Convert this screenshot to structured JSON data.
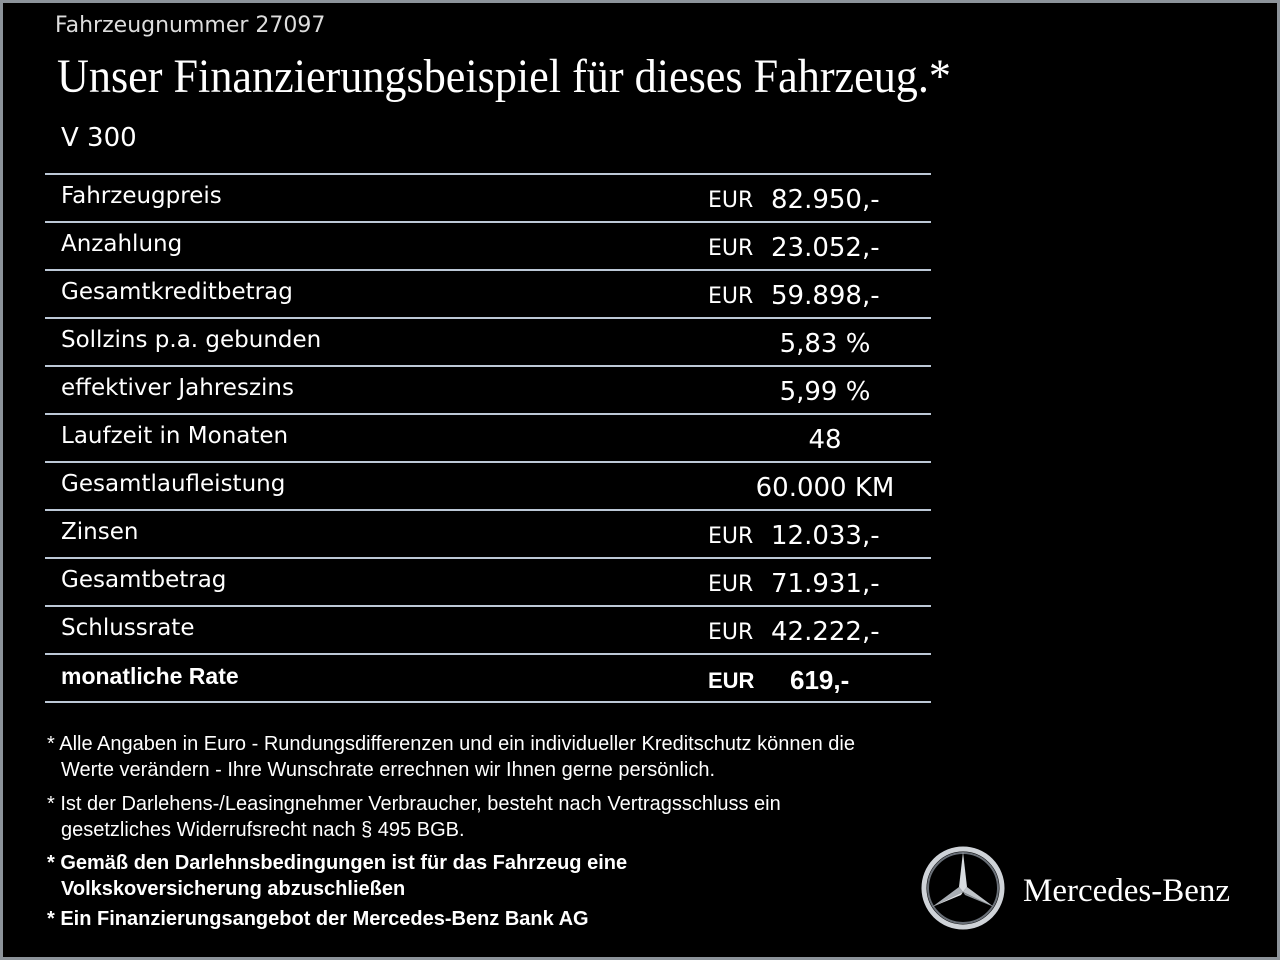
{
  "header": {
    "vehicle_number": "Fahrzeugnummer  27097",
    "title": "Unser Finanzierungsbeispiel für dieses Fahrzeug.*",
    "model": "V 300"
  },
  "table": {
    "rows": [
      {
        "label": "Fahrzeugpreis",
        "currency": "EUR",
        "amount": "82.950,-"
      },
      {
        "label": "Anzahlung",
        "currency": "EUR",
        "amount": "23.052,-"
      },
      {
        "label": "Gesamtkreditbetrag",
        "currency": "EUR",
        "amount": "59.898,-"
      },
      {
        "label": "Sollzins p.a. gebunden",
        "amount": "5,83 %"
      },
      {
        "label": "effektiver Jahreszins",
        "amount": "5,99 %"
      },
      {
        "label": "Laufzeit in Monaten",
        "amount": "48"
      },
      {
        "label": "Gesamtlaufleistung",
        "amount": "60.000 KM"
      },
      {
        "label": "Zinsen",
        "currency": "EUR",
        "amount": "12.033,-"
      },
      {
        "label": "Gesamtbetrag",
        "currency": "EUR",
        "amount": "71.931,-"
      },
      {
        "label": "Schlussrate",
        "currency": "EUR",
        "amount": "42.222,-"
      },
      {
        "label": "monatliche Rate",
        "currency": "EUR",
        "amount": "619,-"
      }
    ]
  },
  "footnotes": [
    {
      "lines": [
        "* Alle Angaben in Euro - Rundungsdifferenzen und ein individueller Kreditschutz können die",
        "Werte verändern - Ihre Wunschrate errechnen wir Ihnen gerne persönlich."
      ]
    },
    {
      "lines": [
        "* Ist der Darlehens-/Leasingnehmer Verbraucher, besteht nach Vertragsschluss ein",
        "gesetzliches Widerrufsrecht nach § 495 BGB."
      ]
    },
    {
      "lines": [
        "* Gemäß den Darlehnsbedingungen ist für das Fahrzeug eine",
        "Volkskoversicherung abzuschließen"
      ]
    },
    {
      "lines": [
        "* Ein Finanzierungsangebot der Mercedes-Benz Bank AG"
      ]
    }
  ],
  "logo": {
    "brand": "Mercedes-Benz"
  }
}
